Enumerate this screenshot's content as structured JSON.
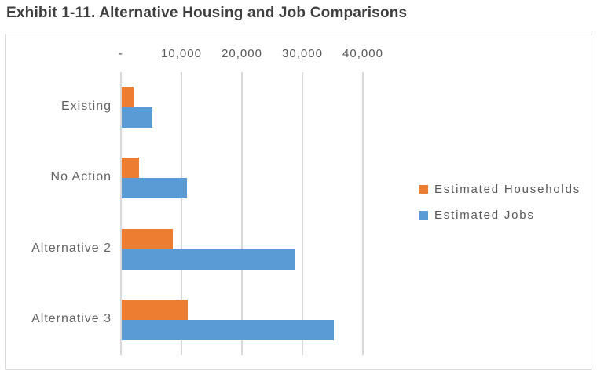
{
  "title": "Exhibit 1-11. Alternative Housing and Job Comparisons",
  "chart_data": {
    "type": "bar",
    "orientation": "horizontal",
    "title": "Exhibit 1-11. Alternative Housing and Job Comparisons",
    "categories": [
      "Existing",
      "No Action",
      "Alternative 2",
      "Alternative 3"
    ],
    "series": [
      {
        "name": "Estimated Households",
        "color": "#ED7D31",
        "values": [
          1900,
          2800,
          8500,
          10900
        ]
      },
      {
        "name": "Estimated Jobs",
        "color": "#5B9BD5",
        "values": [
          5000,
          10800,
          28700,
          35100
        ]
      }
    ],
    "x_axis": {
      "position": "top",
      "min": 0,
      "max": 40000,
      "ticks": [
        0,
        10000,
        20000,
        30000,
        40000
      ],
      "tick_labels": [
        "-",
        "10,000",
        "20,000",
        "30,000",
        "40,000"
      ]
    },
    "xlim": [
      0,
      40000
    ],
    "grid": true,
    "legend_position": "right"
  },
  "colors": {
    "title_text": "#3F3F3F",
    "axis_text": "#595959",
    "category_text": "#636363",
    "gridline": "#D9D9D9",
    "frame_border": "#D9D9D9",
    "background": "#FFFFFF",
    "households_orange": "#ED7D31",
    "jobs_blue": "#5B9BD5"
  }
}
